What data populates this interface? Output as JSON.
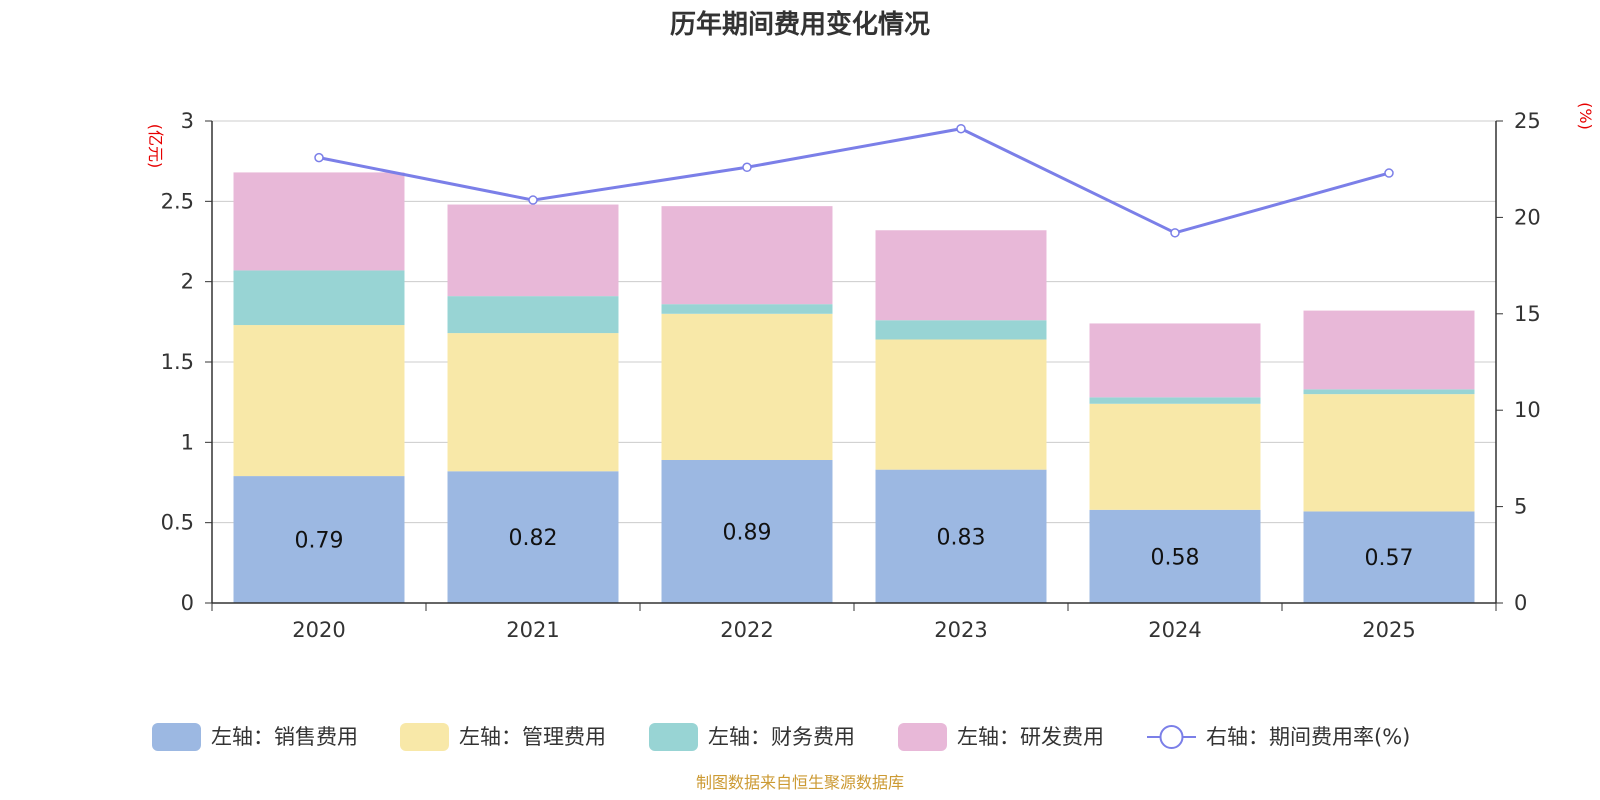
{
  "chart_data": {
    "type": "bar",
    "title": "历年期间费用变化情况",
    "categories": [
      "2020",
      "2021",
      "2022",
      "2023",
      "2024",
      "2025"
    ],
    "left_axis": {
      "unit": "(亿元)",
      "ylim": [
        0,
        3
      ],
      "ticks": [
        "0",
        "0.5",
        "1",
        "1.5",
        "2",
        "2.5",
        "3"
      ]
    },
    "right_axis": {
      "unit": "(%)",
      "ylim": [
        0,
        25
      ],
      "ticks": [
        "0",
        "5",
        "10",
        "15",
        "20",
        "25"
      ]
    },
    "series": [
      {
        "name": "左轴：销售费用",
        "type": "bar",
        "axis": "left",
        "color": "#9cb8e2",
        "values": [
          0.79,
          0.82,
          0.89,
          0.83,
          0.58,
          0.57
        ],
        "labels": [
          "0.79",
          "0.82",
          "0.89",
          "0.83",
          "0.58",
          "0.57"
        ]
      },
      {
        "name": "左轴：管理费用",
        "type": "bar",
        "axis": "left",
        "color": "#f8e8a8",
        "values": [
          0.94,
          0.86,
          0.91,
          0.81,
          0.66,
          0.73
        ]
      },
      {
        "name": "左轴：财务费用",
        "type": "bar",
        "axis": "left",
        "color": "#98d4d4",
        "values": [
          0.34,
          0.23,
          0.06,
          0.12,
          0.04,
          0.03
        ]
      },
      {
        "name": "左轴：研发费用",
        "type": "bar",
        "axis": "left",
        "color": "#e8b8d8",
        "values": [
          0.61,
          0.57,
          0.61,
          0.56,
          0.46,
          0.49
        ]
      },
      {
        "name": "右轴：期间费用率(%)",
        "type": "line",
        "axis": "right",
        "color": "#7b7fe8",
        "values": [
          23.1,
          20.9,
          22.6,
          24.6,
          19.2,
          22.3
        ]
      }
    ],
    "source_note": "制图数据来自恒生聚源数据库"
  }
}
